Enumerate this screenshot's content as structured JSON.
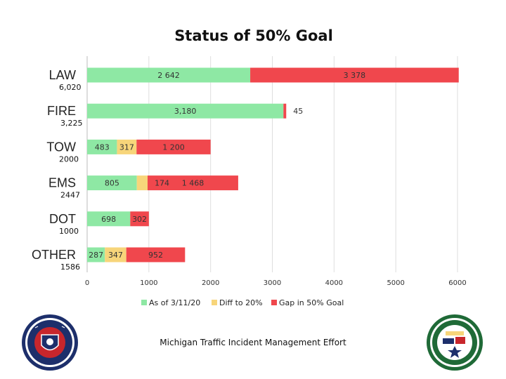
{
  "chart_data": {
    "type": "bar",
    "orientation": "horizontal",
    "stacked": true,
    "title": "Status of 50% Goal",
    "categories": [
      "LAW",
      "FIRE",
      "TOW",
      "EMS",
      "DOT",
      "OTHER"
    ],
    "goal_labels": [
      "6,020",
      "3,225",
      "2000",
      "2447",
      "1000",
      "1586"
    ],
    "series": [
      {
        "name": "As of 3/11/20",
        "color": "#8ee8a4",
        "values": [
          2642,
          3180,
          483,
          805,
          698,
          287
        ],
        "labels": [
          "2 642",
          "3,180",
          "483",
          "805",
          "698",
          "287"
        ]
      },
      {
        "name": "Diff to 20%",
        "color": "#f7d57a",
        "values": [
          0,
          0,
          317,
          174,
          0,
          347
        ],
        "labels": [
          "",
          "",
          "317",
          "174",
          "",
          "347"
        ]
      },
      {
        "name": "Gap in 50% Goal",
        "color": "#f0474d",
        "values": [
          3378,
          45,
          1200,
          1468,
          302,
          952
        ],
        "labels": [
          "3 378",
          "45",
          "1 200",
          "1 468",
          "302",
          "952"
        ]
      }
    ],
    "xlim": [
      0,
      6000
    ],
    "xticks": [
      "0",
      "1000",
      "2000",
      "3000",
      "4000",
      "5000",
      "6000"
    ],
    "grid": "vertical",
    "legend": "bottom"
  },
  "footer": "Michigan Traffic Incident Management Effort",
  "logos": {
    "left": {
      "name": "Michigan State Police seal"
    },
    "right": {
      "name": "Michigan Traffic Incident Management seal"
    }
  }
}
